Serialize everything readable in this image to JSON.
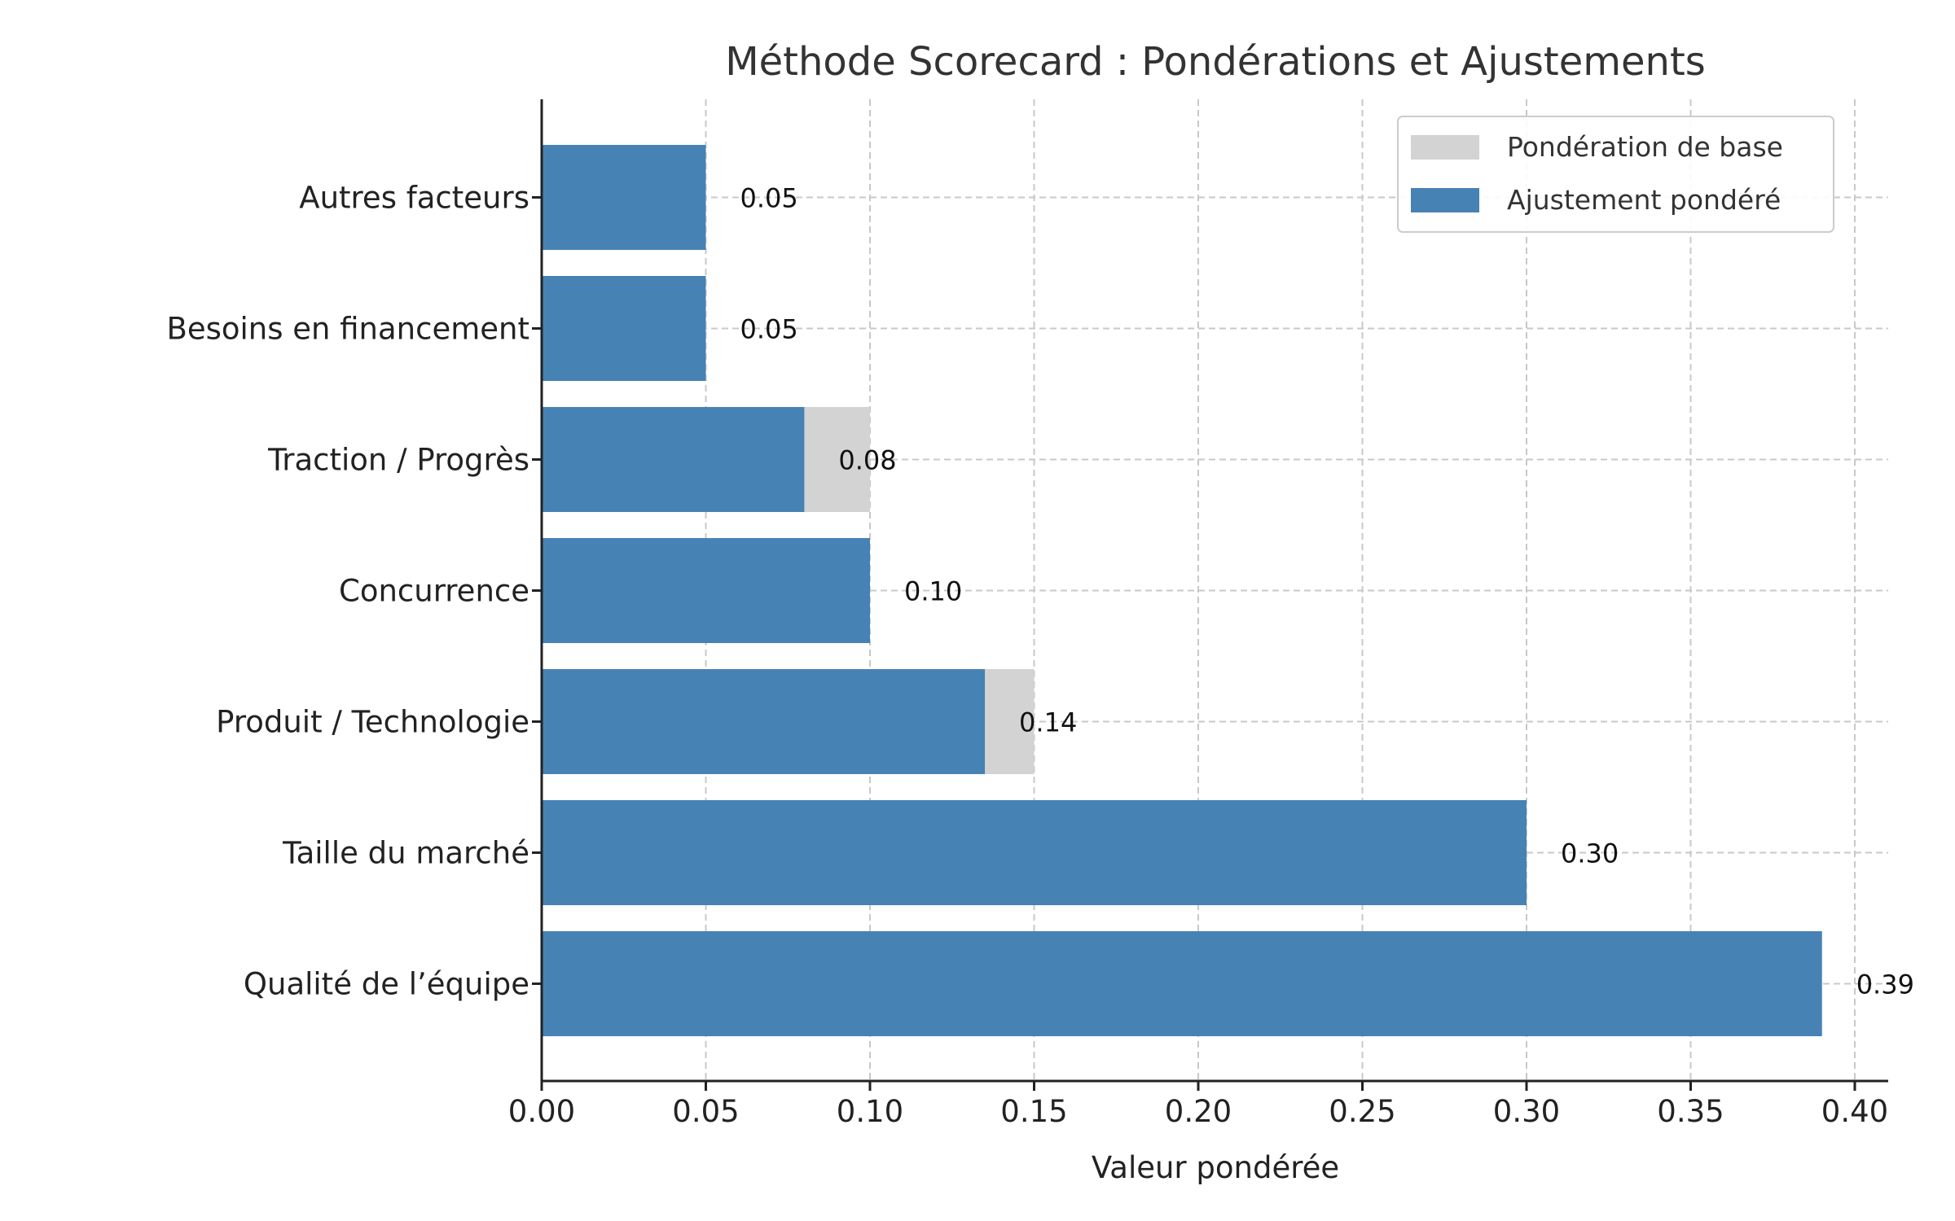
{
  "chart_data": {
    "type": "bar",
    "orientation": "horizontal",
    "title": "Méthode Scorecard : Pondérations et Ajustements",
    "xlabel": "Valeur pondérée",
    "ylabel": "",
    "xlim": [
      0,
      0.41
    ],
    "xticks": [
      "0.00",
      "0.05",
      "0.10",
      "0.15",
      "0.20",
      "0.25",
      "0.30",
      "0.35",
      "0.40"
    ],
    "grid": true,
    "legend_position": "top-right",
    "categories": [
      "Autres facteurs",
      "Besoins en financement",
      "Traction / Progrès",
      "Concurrence",
      "Produit / Technologie",
      "Taille du marché",
      "Qualité de l’équipe"
    ],
    "series": [
      {
        "name": "Pondération de base",
        "color": "#d3d3d3",
        "values": [
          0.05,
          0.05,
          0.1,
          0.1,
          0.15,
          0.3,
          0.39
        ]
      },
      {
        "name": "Ajustement pondéré",
        "color": "#4682b4",
        "values": [
          0.05,
          0.05,
          0.08,
          0.1,
          0.135,
          0.3,
          0.39
        ]
      }
    ],
    "data_labels": [
      "0.05",
      "0.05",
      "0.08",
      "0.10",
      "0.14",
      "0.30",
      "0.39"
    ]
  }
}
